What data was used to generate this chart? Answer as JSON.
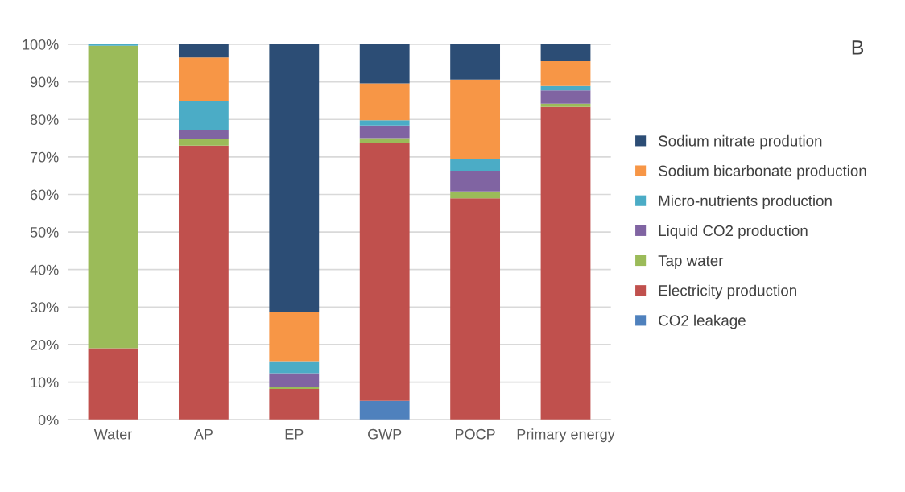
{
  "chart_data": {
    "type": "bar",
    "stacked": true,
    "categories": [
      "Water",
      "AP",
      "EP",
      "GWP",
      "POCP",
      "Primary energy"
    ],
    "series": [
      {
        "name": "CO2 leakage",
        "color": "#4f81bd",
        "values": [
          0,
          0,
          0,
          5,
          0,
          0
        ]
      },
      {
        "name": "Electricity production",
        "color": "#c0504d",
        "values": [
          19,
          73,
          8.2,
          68.8,
          59,
          83.3
        ]
      },
      {
        "name": "Tap water",
        "color": "#9bbb59",
        "values": [
          80.6,
          1.7,
          0.4,
          1.2,
          1.8,
          0.9
        ]
      },
      {
        "name": "Liquid CO2 production",
        "color": "#8064a2",
        "values": [
          0,
          2.5,
          3.8,
          3.4,
          5.5,
          3.5
        ]
      },
      {
        "name": "Micro-nutrients production",
        "color": "#4bacc6",
        "values": [
          0.4,
          7.6,
          3.2,
          1.4,
          3.2,
          1.2
        ]
      },
      {
        "name": "Sodium bicarbonate production",
        "color": "#f79646",
        "values": [
          0,
          11.7,
          13.1,
          9.8,
          21.1,
          6.6
        ]
      },
      {
        "name": "Sodium nitrate prodution",
        "color": "#2c4d75",
        "values": [
          0,
          3.5,
          71.3,
          10.4,
          9.4,
          4.5
        ]
      }
    ],
    "ylim": [
      0,
      100
    ],
    "yticks": [
      {
        "value": 0,
        "label": "0%"
      },
      {
        "value": 10,
        "label": "10%"
      },
      {
        "value": 20,
        "label": "20%"
      },
      {
        "value": 30,
        "label": "30%"
      },
      {
        "value": 40,
        "label": "40%"
      },
      {
        "value": 50,
        "label": "50%"
      },
      {
        "value": 60,
        "label": "60%"
      },
      {
        "value": 70,
        "label": "70%"
      },
      {
        "value": 80,
        "label": "80%"
      },
      {
        "value": 90,
        "label": "90%"
      },
      {
        "value": 100,
        "label": "100%"
      }
    ],
    "grid": "y",
    "legend": "right",
    "annotations": [
      "B"
    ]
  }
}
